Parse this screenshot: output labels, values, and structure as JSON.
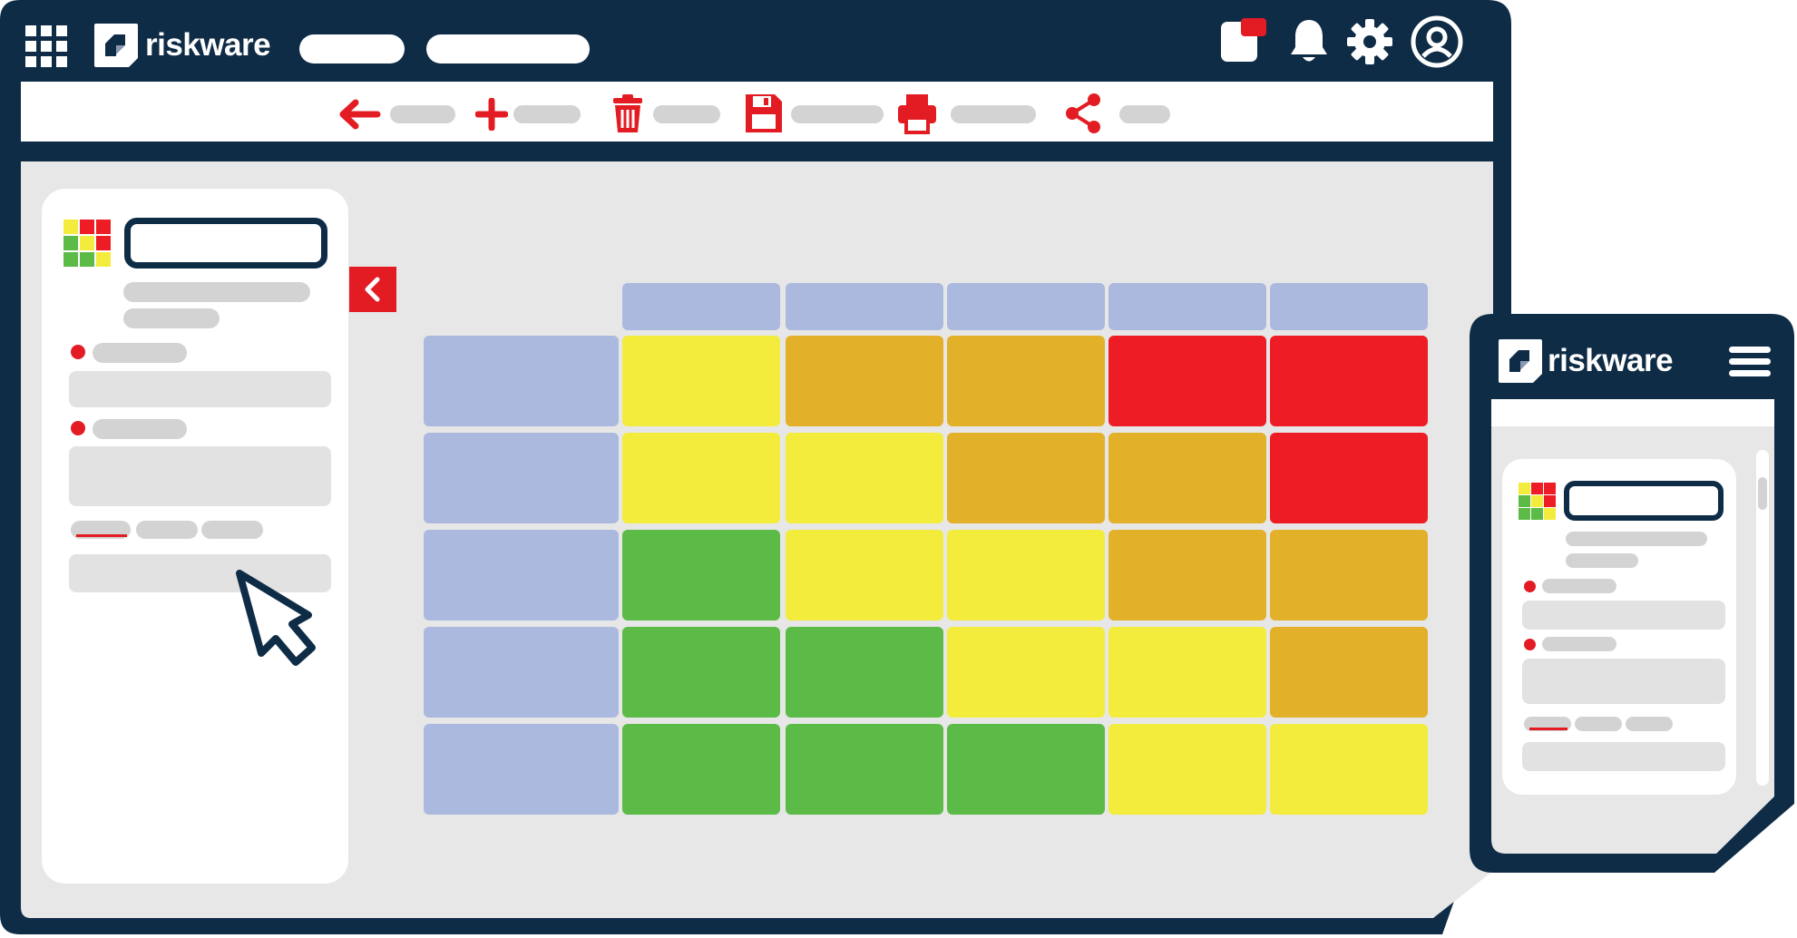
{
  "desktop": {
    "brand": "riskware",
    "header_icons": [
      "apps-grid-icon",
      "notification-card-icon",
      "bell-icon",
      "settings-gear-icon",
      "user-account-icon"
    ],
    "toolbar_icons": [
      "back-arrow-icon",
      "add-icon",
      "delete-trash-icon",
      "save-icon",
      "print-icon",
      "share-icon"
    ]
  },
  "mobile": {
    "brand": "riskware",
    "header_icons": [
      "hamburger-menu-icon"
    ]
  },
  "matrix": {
    "rows": 5,
    "cols": 5,
    "levels": [
      [
        "medium",
        "high",
        "high",
        "extreme",
        "extreme"
      ],
      [
        "medium",
        "medium",
        "high",
        "high",
        "extreme"
      ],
      [
        "low",
        "medium",
        "medium",
        "high",
        "high"
      ],
      [
        "low",
        "low",
        "medium",
        "medium",
        "high"
      ],
      [
        "low",
        "low",
        "low",
        "medium",
        "medium"
      ]
    ]
  },
  "colors": {
    "navy": "#0f2c47",
    "red": "#e31c24",
    "header_cell": "#acb9df",
    "low": "#5cbb47",
    "medium": "#f3ec3c",
    "high": "#e3b02a",
    "extreme": "#ee1c24",
    "canvas": "#e6e7e6"
  }
}
